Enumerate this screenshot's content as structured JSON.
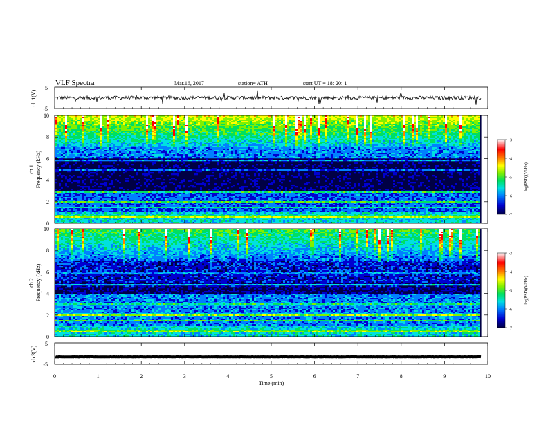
{
  "header": {
    "title": "VLF  Spectra",
    "date": "Mar.16, 2017",
    "station": "station= ATH",
    "start": "start  UT  =    18: 20: 1"
  },
  "chart_data": [
    {
      "type": "line",
      "name": "ch1-waveform",
      "ylabel": "ch.1(V)",
      "ylim": [
        -5,
        5
      ],
      "yticks": [
        "5",
        "-5"
      ],
      "xlim": [
        0,
        10
      ],
      "trace_color": "#000000",
      "baseline": 0
    },
    {
      "type": "heatmap",
      "name": "ch1-spectrogram",
      "ylabel_top": "ch.1",
      "ylabel": "Frequency  (kHz)",
      "ylim": [
        0,
        10
      ],
      "yticks": [
        "10",
        "8",
        "6",
        "4",
        "2",
        "0"
      ],
      "xlim": [
        0,
        9.85
      ],
      "colorbar": {
        "label": "log(PSD)(V²/Hz)",
        "range": [
          -7,
          -3
        ],
        "ticks": [
          "-3",
          "-4",
          "-5",
          "-6",
          "-7"
        ],
        "colors": [
          "#000044",
          "#0000d0",
          "#0080ff",
          "#00e0e0",
          "#00e060",
          "#80f000",
          "#ffff00",
          "#ff8000",
          "#ff0000",
          "#ffffff"
        ]
      }
    },
    {
      "type": "heatmap",
      "name": "ch2-spectrogram",
      "ylabel_top": "ch.2",
      "ylabel": "Frequency  (kHz)",
      "ylim": [
        0,
        10
      ],
      "yticks": [
        "10",
        "8",
        "6",
        "4",
        "2",
        "0"
      ],
      "xlim": [
        0,
        9.85
      ],
      "colorbar": {
        "label": "log(PSD)(V²/Hz)",
        "range": [
          -7,
          -3
        ],
        "ticks": [
          "-3",
          "-4",
          "-5",
          "-6",
          "-7"
        ]
      }
    },
    {
      "type": "line",
      "name": "ch3-waveform",
      "ylabel": "ch.3(V)",
      "ylim": [
        -5,
        5
      ],
      "yticks": [
        "5",
        "-5"
      ],
      "xlim": [
        0,
        10
      ],
      "trace_color": "#000000",
      "baseline": -1.5
    }
  ],
  "xaxis": {
    "label": "Time  (min)",
    "ticks": [
      "0",
      "1",
      "2",
      "3",
      "4",
      "5",
      "6",
      "7",
      "8",
      "9",
      "10"
    ],
    "range": [
      0,
      10
    ]
  }
}
